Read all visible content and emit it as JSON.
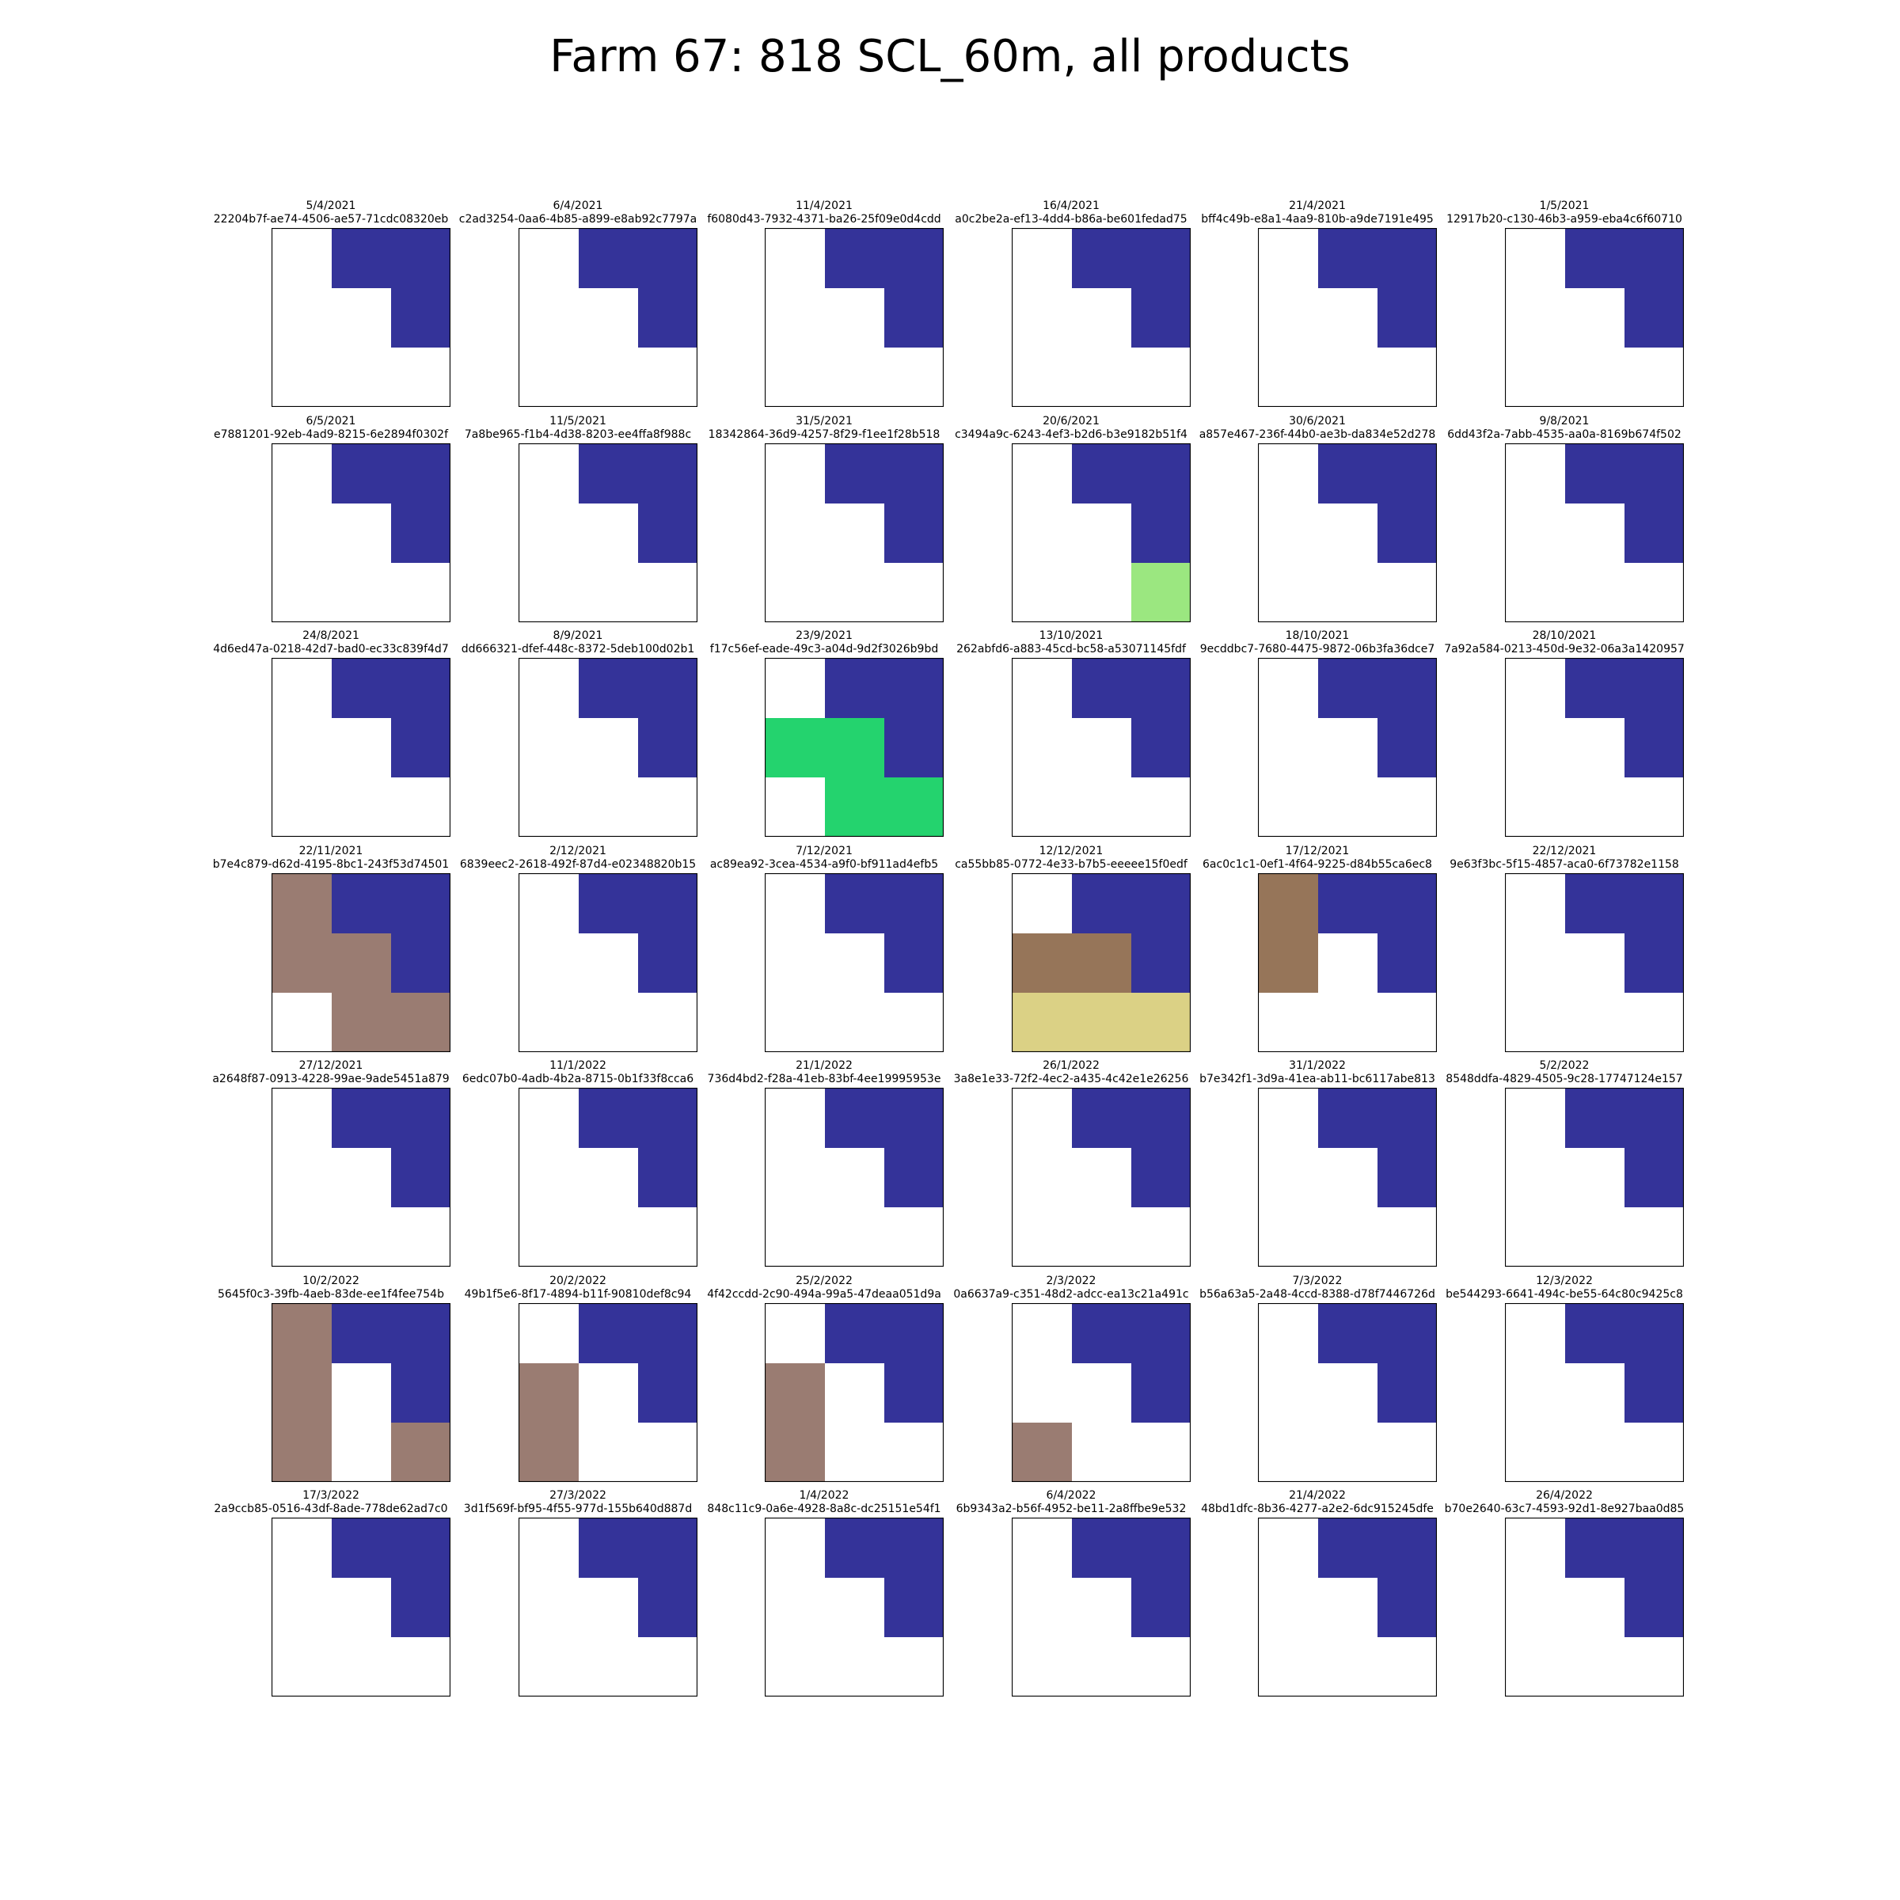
{
  "title": "Farm 67: 818 SCL_60m, all products",
  "colors": {
    "blank": "#ffffff",
    "water": "#343399",
    "vegetation_light": "#9be780",
    "vegetation": "#24d36e",
    "soil_pink": "#9a7c72",
    "soil_brown": "#967559",
    "bare_tan": "#dbd185",
    "border": "#000000"
  },
  "chart_data": {
    "type": "heatmap",
    "grid_size": [
      3,
      3
    ],
    "panels": [
      {
        "date": "5/4/2021",
        "id": "22204b7f-ae74-4506-ae57-71cdc08320eb",
        "cells": [
          [
            0,
            1,
            1
          ],
          [
            0,
            0,
            1
          ],
          [
            0,
            0,
            0
          ]
        ]
      },
      {
        "date": "6/4/2021",
        "id": "c2ad3254-0aa6-4b85-a899-e8ab92c7797a",
        "cells": [
          [
            0,
            1,
            1
          ],
          [
            0,
            0,
            1
          ],
          [
            0,
            0,
            0
          ]
        ]
      },
      {
        "date": "11/4/2021",
        "id": "f6080d43-7932-4371-ba26-25f09e0d4cdd",
        "cells": [
          [
            0,
            1,
            1
          ],
          [
            0,
            0,
            1
          ],
          [
            0,
            0,
            0
          ]
        ]
      },
      {
        "date": "16/4/2021",
        "id": "a0c2be2a-ef13-4dd4-b86a-be601fedad75",
        "cells": [
          [
            0,
            1,
            1
          ],
          [
            0,
            0,
            1
          ],
          [
            0,
            0,
            0
          ]
        ]
      },
      {
        "date": "21/4/2021",
        "id": "bff4c49b-e8a1-4aa9-810b-a9de7191e495",
        "cells": [
          [
            0,
            1,
            1
          ],
          [
            0,
            0,
            1
          ],
          [
            0,
            0,
            0
          ]
        ]
      },
      {
        "date": "1/5/2021",
        "id": "12917b20-c130-46b3-a959-eba4c6f60710",
        "cells": [
          [
            0,
            1,
            1
          ],
          [
            0,
            0,
            1
          ],
          [
            0,
            0,
            0
          ]
        ]
      },
      {
        "date": "6/5/2021",
        "id": "e7881201-92eb-4ad9-8215-6e2894f0302f",
        "cells": [
          [
            0,
            1,
            1
          ],
          [
            0,
            0,
            1
          ],
          [
            0,
            0,
            0
          ]
        ]
      },
      {
        "date": "11/5/2021",
        "id": "7a8be965-f1b4-4d38-8203-ee4ffa8f988c",
        "cells": [
          [
            0,
            1,
            1
          ],
          [
            0,
            0,
            1
          ],
          [
            0,
            0,
            0
          ]
        ]
      },
      {
        "date": "31/5/2021",
        "id": "18342864-36d9-4257-8f29-f1ee1f28b518",
        "cells": [
          [
            0,
            1,
            1
          ],
          [
            0,
            0,
            1
          ],
          [
            0,
            0,
            0
          ]
        ]
      },
      {
        "date": "20/6/2021",
        "id": "c3494a9c-6243-4ef3-b2d6-b3e9182b51f4",
        "cells": [
          [
            0,
            1,
            1
          ],
          [
            0,
            0,
            1
          ],
          [
            0,
            0,
            2
          ]
        ]
      },
      {
        "date": "30/6/2021",
        "id": "a857e467-236f-44b0-ae3b-da834e52d278",
        "cells": [
          [
            0,
            1,
            1
          ],
          [
            0,
            0,
            1
          ],
          [
            0,
            0,
            0
          ]
        ]
      },
      {
        "date": "9/8/2021",
        "id": "6dd43f2a-7abb-4535-aa0a-8169b674f502",
        "cells": [
          [
            0,
            1,
            1
          ],
          [
            0,
            0,
            1
          ],
          [
            0,
            0,
            0
          ]
        ]
      },
      {
        "date": "24/8/2021",
        "id": "4d6ed47a-0218-42d7-bad0-ec33c839f4d7",
        "cells": [
          [
            0,
            1,
            1
          ],
          [
            0,
            0,
            1
          ],
          [
            0,
            0,
            0
          ]
        ]
      },
      {
        "date": "8/9/2021",
        "id": "dd666321-dfef-448c-8372-5deb100d02b1",
        "cells": [
          [
            0,
            1,
            1
          ],
          [
            0,
            0,
            1
          ],
          [
            0,
            0,
            0
          ]
        ]
      },
      {
        "date": "23/9/2021",
        "id": "f17c56ef-eade-49c3-a04d-9d2f3026b9bd",
        "cells": [
          [
            0,
            1,
            1
          ],
          [
            3,
            3,
            1
          ],
          [
            0,
            3,
            3
          ]
        ]
      },
      {
        "date": "13/10/2021",
        "id": "262abfd6-a883-45cd-bc58-a53071145fdf",
        "cells": [
          [
            0,
            1,
            1
          ],
          [
            0,
            0,
            1
          ],
          [
            0,
            0,
            0
          ]
        ]
      },
      {
        "date": "18/10/2021",
        "id": "9ecddbc7-7680-4475-9872-06b3fa36dce7",
        "cells": [
          [
            0,
            1,
            1
          ],
          [
            0,
            0,
            1
          ],
          [
            0,
            0,
            0
          ]
        ]
      },
      {
        "date": "28/10/2021",
        "id": "7a92a584-0213-450d-9e32-06a3a1420957",
        "cells": [
          [
            0,
            1,
            1
          ],
          [
            0,
            0,
            1
          ],
          [
            0,
            0,
            0
          ]
        ]
      },
      {
        "date": "22/11/2021",
        "id": "b7e4c879-d62d-4195-8bc1-243f53d74501",
        "cells": [
          [
            4,
            1,
            1
          ],
          [
            4,
            4,
            1
          ],
          [
            0,
            4,
            4
          ]
        ]
      },
      {
        "date": "2/12/2021",
        "id": "6839eec2-2618-492f-87d4-e02348820b15",
        "cells": [
          [
            0,
            1,
            1
          ],
          [
            0,
            0,
            1
          ],
          [
            0,
            0,
            0
          ]
        ]
      },
      {
        "date": "7/12/2021",
        "id": "ac89ea92-3cea-4534-a9f0-bf911ad4efb5",
        "cells": [
          [
            0,
            1,
            1
          ],
          [
            0,
            0,
            1
          ],
          [
            0,
            0,
            0
          ]
        ]
      },
      {
        "date": "12/12/2021",
        "id": "ca55bb85-0772-4e33-b7b5-eeeee15f0edf",
        "cells": [
          [
            0,
            1,
            1
          ],
          [
            5,
            5,
            1
          ],
          [
            6,
            6,
            6
          ]
        ]
      },
      {
        "date": "17/12/2021",
        "id": "6ac0c1c1-0ef1-4f64-9225-d84b55ca6ec8",
        "cells": [
          [
            5,
            1,
            1
          ],
          [
            5,
            0,
            1
          ],
          [
            0,
            0,
            0
          ]
        ]
      },
      {
        "date": "22/12/2021",
        "id": "9e63f3bc-5f15-4857-aca0-6f73782e1158",
        "cells": [
          [
            0,
            1,
            1
          ],
          [
            0,
            0,
            1
          ],
          [
            0,
            0,
            0
          ]
        ]
      },
      {
        "date": "27/12/2021",
        "id": "a2648f87-0913-4228-99ae-9ade5451a879",
        "cells": [
          [
            0,
            1,
            1
          ],
          [
            0,
            0,
            1
          ],
          [
            0,
            0,
            0
          ]
        ]
      },
      {
        "date": "11/1/2022",
        "id": "6edc07b0-4adb-4b2a-8715-0b1f33f8cca6",
        "cells": [
          [
            0,
            1,
            1
          ],
          [
            0,
            0,
            1
          ],
          [
            0,
            0,
            0
          ]
        ]
      },
      {
        "date": "21/1/2022",
        "id": "736d4bd2-f28a-41eb-83bf-4ee19995953e",
        "cells": [
          [
            0,
            1,
            1
          ],
          [
            0,
            0,
            1
          ],
          [
            0,
            0,
            0
          ]
        ]
      },
      {
        "date": "26/1/2022",
        "id": "3a8e1e33-72f2-4ec2-a435-4c42e1e26256",
        "cells": [
          [
            0,
            1,
            1
          ],
          [
            0,
            0,
            1
          ],
          [
            0,
            0,
            0
          ]
        ]
      },
      {
        "date": "31/1/2022",
        "id": "b7e342f1-3d9a-41ea-ab11-bc6117abe813",
        "cells": [
          [
            0,
            1,
            1
          ],
          [
            0,
            0,
            1
          ],
          [
            0,
            0,
            0
          ]
        ]
      },
      {
        "date": "5/2/2022",
        "id": "8548ddfa-4829-4505-9c28-17747124e157",
        "cells": [
          [
            0,
            1,
            1
          ],
          [
            0,
            0,
            1
          ],
          [
            0,
            0,
            0
          ]
        ]
      },
      {
        "date": "10/2/2022",
        "id": "5645f0c3-39fb-4aeb-83de-ee1f4fee754b",
        "cells": [
          [
            4,
            1,
            1
          ],
          [
            4,
            0,
            1
          ],
          [
            4,
            0,
            4
          ]
        ]
      },
      {
        "date": "20/2/2022",
        "id": "49b1f5e6-8f17-4894-b11f-90810def8c94",
        "cells": [
          [
            0,
            1,
            1
          ],
          [
            4,
            0,
            1
          ],
          [
            4,
            0,
            0
          ]
        ]
      },
      {
        "date": "25/2/2022",
        "id": "4f42ccdd-2c90-494a-99a5-47deaa051d9a",
        "cells": [
          [
            0,
            1,
            1
          ],
          [
            4,
            0,
            1
          ],
          [
            4,
            0,
            0
          ]
        ]
      },
      {
        "date": "2/3/2022",
        "id": "0a6637a9-c351-48d2-adcc-ea13c21a491c",
        "cells": [
          [
            0,
            1,
            1
          ],
          [
            0,
            0,
            1
          ],
          [
            4,
            0,
            0
          ]
        ]
      },
      {
        "date": "7/3/2022",
        "id": "b56a63a5-2a48-4ccd-8388-d78f7446726d",
        "cells": [
          [
            0,
            1,
            1
          ],
          [
            0,
            0,
            1
          ],
          [
            0,
            0,
            0
          ]
        ]
      },
      {
        "date": "12/3/2022",
        "id": "be544293-6641-494c-be55-64c80c9425c8",
        "cells": [
          [
            0,
            1,
            1
          ],
          [
            0,
            0,
            1
          ],
          [
            0,
            0,
            0
          ]
        ]
      },
      {
        "date": "17/3/2022",
        "id": "2a9ccb85-0516-43df-8ade-778de62ad7c0",
        "cells": [
          [
            0,
            1,
            1
          ],
          [
            0,
            0,
            1
          ],
          [
            0,
            0,
            0
          ]
        ]
      },
      {
        "date": "27/3/2022",
        "id": "3d1f569f-bf95-4f55-977d-155b640d887d",
        "cells": [
          [
            0,
            1,
            1
          ],
          [
            0,
            0,
            1
          ],
          [
            0,
            0,
            0
          ]
        ]
      },
      {
        "date": "1/4/2022",
        "id": "848c11c9-0a6e-4928-8a8c-dc25151e54f1",
        "cells": [
          [
            0,
            1,
            1
          ],
          [
            0,
            0,
            1
          ],
          [
            0,
            0,
            0
          ]
        ]
      },
      {
        "date": "6/4/2022",
        "id": "6b9343a2-b56f-4952-be11-2a8ffbe9e532",
        "cells": [
          [
            0,
            1,
            1
          ],
          [
            0,
            0,
            1
          ],
          [
            0,
            0,
            0
          ]
        ]
      },
      {
        "date": "21/4/2022",
        "id": "48bd1dfc-8b36-4277-a2e2-6dc915245dfe",
        "cells": [
          [
            0,
            1,
            1
          ],
          [
            0,
            0,
            1
          ],
          [
            0,
            0,
            0
          ]
        ]
      },
      {
        "date": "26/4/2022",
        "id": "b70e2640-63c7-4593-92d1-8e927baa0d85",
        "cells": [
          [
            0,
            1,
            1
          ],
          [
            0,
            0,
            1
          ],
          [
            0,
            0,
            0
          ]
        ]
      }
    ],
    "palette": [
      "#ffffff",
      "#343399",
      "#9be780",
      "#24d36e",
      "#9a7c72",
      "#967559",
      "#dbd185"
    ]
  }
}
